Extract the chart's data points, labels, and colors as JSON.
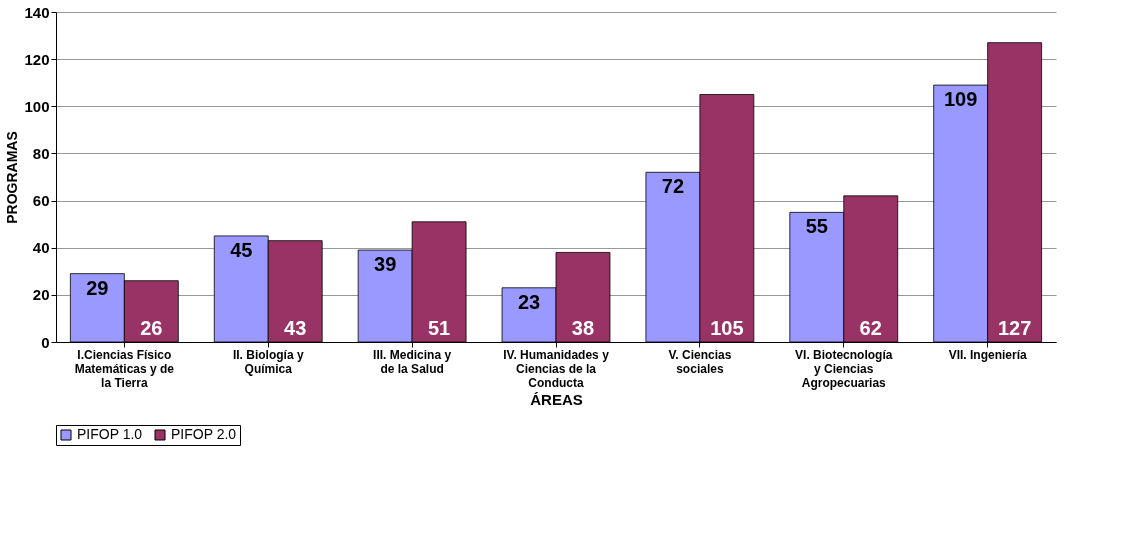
{
  "chart_data": {
    "type": "bar",
    "categories": [
      "I.Ciencias Físico Matemáticas y de la Tierra",
      "II. Biología y Química",
      "III. Medicina y de la Salud",
      "IV. Humanidades y Ciencias de la Conducta",
      "V. Ciencias sociales",
      "VI. Biotecnología y Ciencias Agropecuarias",
      "VII. Ingeniería"
    ],
    "series": [
      {
        "name": "PIFOP 1.0",
        "color": "#9999ff",
        "values": [
          29,
          45,
          39,
          23,
          72,
          55,
          109
        ]
      },
      {
        "name": "PIFOP 2.0",
        "color": "#993366",
        "values": [
          26,
          43,
          51,
          38,
          105,
          62,
          127
        ]
      }
    ],
    "xlabel": "ÁREAS",
    "ylabel": "PROGRAMAS",
    "ylim": [
      0,
      140
    ],
    "yticks": [
      0,
      20,
      40,
      60,
      80,
      100,
      120,
      140
    ],
    "grid": "y",
    "legend": "bottom",
    "data_labels": true
  }
}
